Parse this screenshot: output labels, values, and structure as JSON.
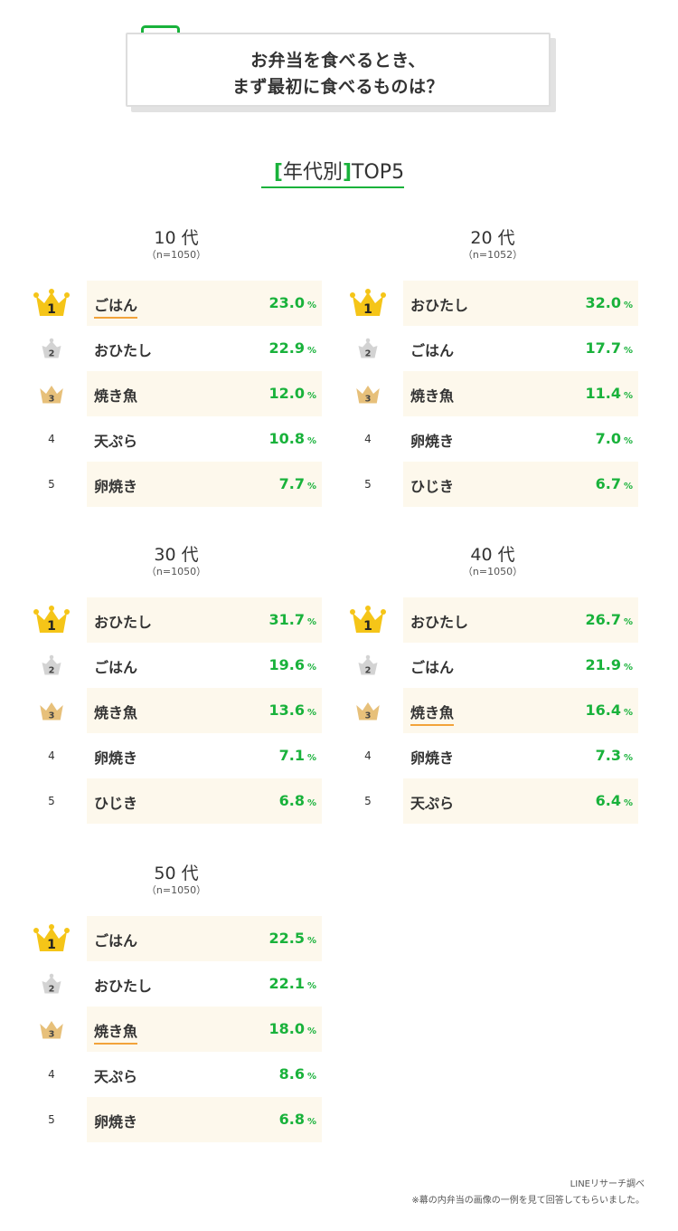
{
  "header": {
    "question_line1": "お弁当を食べるとき、",
    "question_line2": "まず最初に食べるものは？"
  },
  "section": {
    "bracket_open": "[",
    "title": "年代別",
    "bracket_close": "]",
    "suffix": "TOP5"
  },
  "colors": {
    "accent_green": "#19b23b",
    "highlight_orange": "#f2a33a",
    "row_shade": "#fdf8ec",
    "gold": "#f5c518",
    "silver": "#d3d3d3",
    "bronze": "#e7c07a"
  },
  "icons": {
    "rank1": "gold-crown-icon",
    "rank2": "silver-crown-icon",
    "rank3": "bronze-crown-icon"
  },
  "percent_unit": "%",
  "chart_data": {
    "type": "table",
    "groups": [
      {
        "title": "10 代",
        "n": "（n=1050）",
        "rows": [
          {
            "rank": "1",
            "label": "ごはん",
            "value": "23.0",
            "underline": true
          },
          {
            "rank": "2",
            "label": "おひたし",
            "value": "22.9",
            "underline": false
          },
          {
            "rank": "3",
            "label": "焼き魚",
            "value": "12.0",
            "underline": false
          },
          {
            "rank": "4",
            "label": "天ぷら",
            "value": "10.8",
            "underline": false
          },
          {
            "rank": "5",
            "label": "卵焼き",
            "value": "7.7",
            "underline": false
          }
        ]
      },
      {
        "title": "20 代",
        "n": "（n=1052）",
        "rows": [
          {
            "rank": "1",
            "label": "おひたし",
            "value": "32.0",
            "underline": false
          },
          {
            "rank": "2",
            "label": "ごはん",
            "value": "17.7",
            "underline": false
          },
          {
            "rank": "3",
            "label": "焼き魚",
            "value": "11.4",
            "underline": false
          },
          {
            "rank": "4",
            "label": "卵焼き",
            "value": "7.0",
            "underline": false
          },
          {
            "rank": "5",
            "label": "ひじき",
            "value": "6.7",
            "underline": false
          }
        ]
      },
      {
        "title": "30 代",
        "n": "（n=1050）",
        "rows": [
          {
            "rank": "1",
            "label": "おひたし",
            "value": "31.7",
            "underline": false
          },
          {
            "rank": "2",
            "label": "ごはん",
            "value": "19.6",
            "underline": false
          },
          {
            "rank": "3",
            "label": "焼き魚",
            "value": "13.6",
            "underline": false
          },
          {
            "rank": "4",
            "label": "卵焼き",
            "value": "7.1",
            "underline": false
          },
          {
            "rank": "5",
            "label": "ひじき",
            "value": "6.8",
            "underline": false
          }
        ]
      },
      {
        "title": "40 代",
        "n": "（n=1050）",
        "rows": [
          {
            "rank": "1",
            "label": "おひたし",
            "value": "26.7",
            "underline": false
          },
          {
            "rank": "2",
            "label": "ごはん",
            "value": "21.9",
            "underline": false
          },
          {
            "rank": "3",
            "label": "焼き魚",
            "value": "16.4",
            "underline": true
          },
          {
            "rank": "4",
            "label": "卵焼き",
            "value": "7.3",
            "underline": false
          },
          {
            "rank": "5",
            "label": "天ぷら",
            "value": "6.4",
            "underline": false
          }
        ]
      },
      {
        "title": "50 代",
        "n": "（n=1050）",
        "rows": [
          {
            "rank": "1",
            "label": "ごはん",
            "value": "22.5",
            "underline": false
          },
          {
            "rank": "2",
            "label": "おひたし",
            "value": "22.1",
            "underline": false
          },
          {
            "rank": "3",
            "label": "焼き魚",
            "value": "18.0",
            "underline": true
          },
          {
            "rank": "4",
            "label": "天ぷら",
            "value": "8.6",
            "underline": false
          },
          {
            "rank": "5",
            "label": "卵焼き",
            "value": "6.8",
            "underline": false
          }
        ]
      }
    ]
  },
  "footer": {
    "source": "LINEリサーチ調べ",
    "note": "※幕の内弁当の画像の一例を見て回答してもらいました。"
  }
}
